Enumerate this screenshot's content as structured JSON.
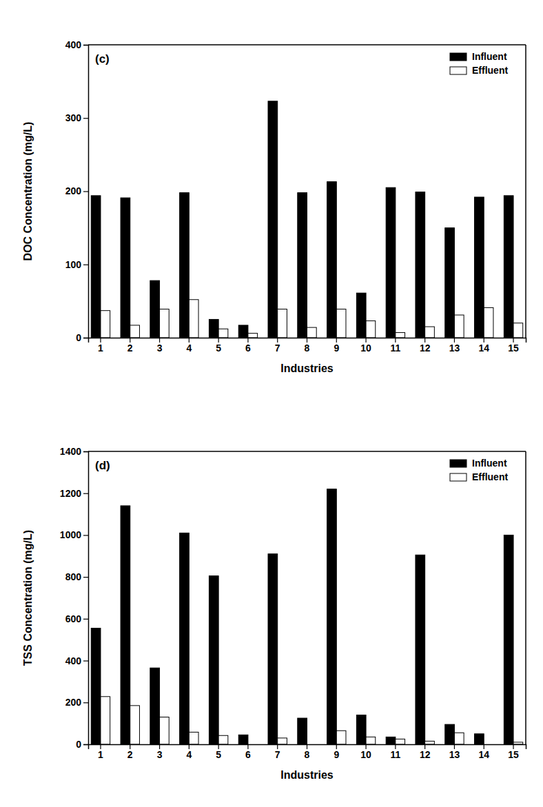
{
  "chart_data": [
    {
      "type": "bar",
      "title": "(c)",
      "x_label": "Industries",
      "y_label": "DOC Concentration (mg/L)",
      "categories": [
        "1",
        "2",
        "3",
        "4",
        "5",
        "6",
        "7",
        "8",
        "9",
        "10",
        "11",
        "12",
        "13",
        "14",
        "15"
      ],
      "series": [
        {
          "name": "Influent",
          "color": "#000000",
          "values": [
            194,
            191,
            78,
            198,
            25,
            17,
            323,
            198,
            213,
            61,
            205,
            199,
            150,
            192,
            194
          ]
        },
        {
          "name": "Effluent",
          "color": "#ffffff",
          "values": [
            37,
            17,
            39,
            52,
            12,
            6,
            39,
            14,
            39,
            23,
            7,
            15,
            31,
            41,
            20
          ]
        }
      ],
      "ylim": [
        0,
        400
      ],
      "yticks": [
        0,
        100,
        200,
        300,
        400
      ],
      "legend": "upper right"
    },
    {
      "type": "bar",
      "title": "(d)",
      "x_label": "Industries",
      "y_label": "TSS Concentration (mg/L)",
      "categories": [
        "1",
        "2",
        "3",
        "4",
        "5",
        "6",
        "7",
        "8",
        "9",
        "10",
        "11",
        "12",
        "13",
        "14",
        "15"
      ],
      "series": [
        {
          "name": "Influent",
          "color": "#000000",
          "values": [
            555,
            1140,
            365,
            1010,
            805,
            45,
            910,
            125,
            1220,
            140,
            35,
            905,
            95,
            50,
            1000
          ]
        },
        {
          "name": "Effluent",
          "color": "#ffffff",
          "values": [
            228,
            185,
            130,
            58,
            42,
            0,
            30,
            0,
            65,
            35,
            25,
            15,
            55,
            0,
            10
          ]
        }
      ],
      "ylim": [
        0,
        1400
      ],
      "yticks": [
        0,
        200,
        400,
        600,
        800,
        1000,
        1200,
        1400
      ],
      "legend": "upper right"
    }
  ]
}
